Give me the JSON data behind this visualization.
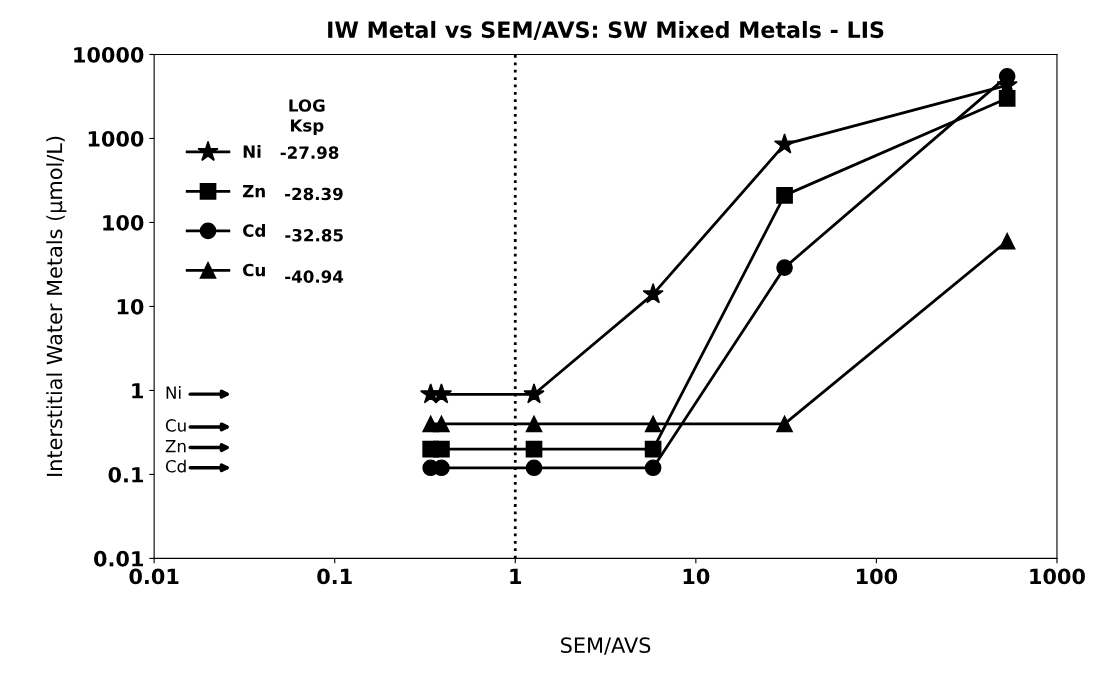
{
  "chart_data": {
    "type": "line",
    "title": "IW Metal vs SEM/AVS: SW Mixed Metals - LIS",
    "xlabel": "SEM/AVS",
    "ylabel": "Interstitial Water Metals (µmol/L)",
    "x": [
      0.34,
      0.39,
      1.27,
      5.8,
      31,
      530
    ],
    "series": [
      {
        "name": "Ni",
        "color": "#000000",
        "marker": "star",
        "values": [
          0.9,
          0.9,
          0.9,
          14,
          850,
          4300
        ]
      },
      {
        "name": "Zn",
        "color": "#000000",
        "marker": "square",
        "values": [
          0.2,
          0.2,
          0.2,
          0.2,
          210,
          3000
        ]
      },
      {
        "name": "Cd",
        "color": "#000000",
        "marker": "circle",
        "values": [
          0.12,
          0.12,
          0.12,
          0.12,
          29,
          5500
        ]
      },
      {
        "name": "Cu",
        "color": "#000000",
        "marker": "triangle",
        "values": [
          0.4,
          0.4,
          0.4,
          0.4,
          0.4,
          60
        ]
      }
    ],
    "log": "xy",
    "xlim": [
      0.01,
      1000
    ],
    "ylim": [
      0.01,
      10000
    ],
    "xticks": [
      0.01,
      0.1,
      1,
      10,
      100,
      1000
    ],
    "yticks": [
      0.01,
      0.1,
      1,
      10,
      100,
      1000,
      10000
    ],
    "grid": false,
    "legend": "top left",
    "legend_title": "LOG\nKsp",
    "line_style": "solid",
    "ref_lines": [
      {
        "axis": "x",
        "value": 1,
        "color": "#000000",
        "line_style": "dotted"
      }
    ],
    "annotations": [
      "-27.98",
      "-28.39",
      "-32.85",
      "-40.94",
      "Ni",
      "Cu",
      "Zn",
      "Cd"
    ]
  }
}
